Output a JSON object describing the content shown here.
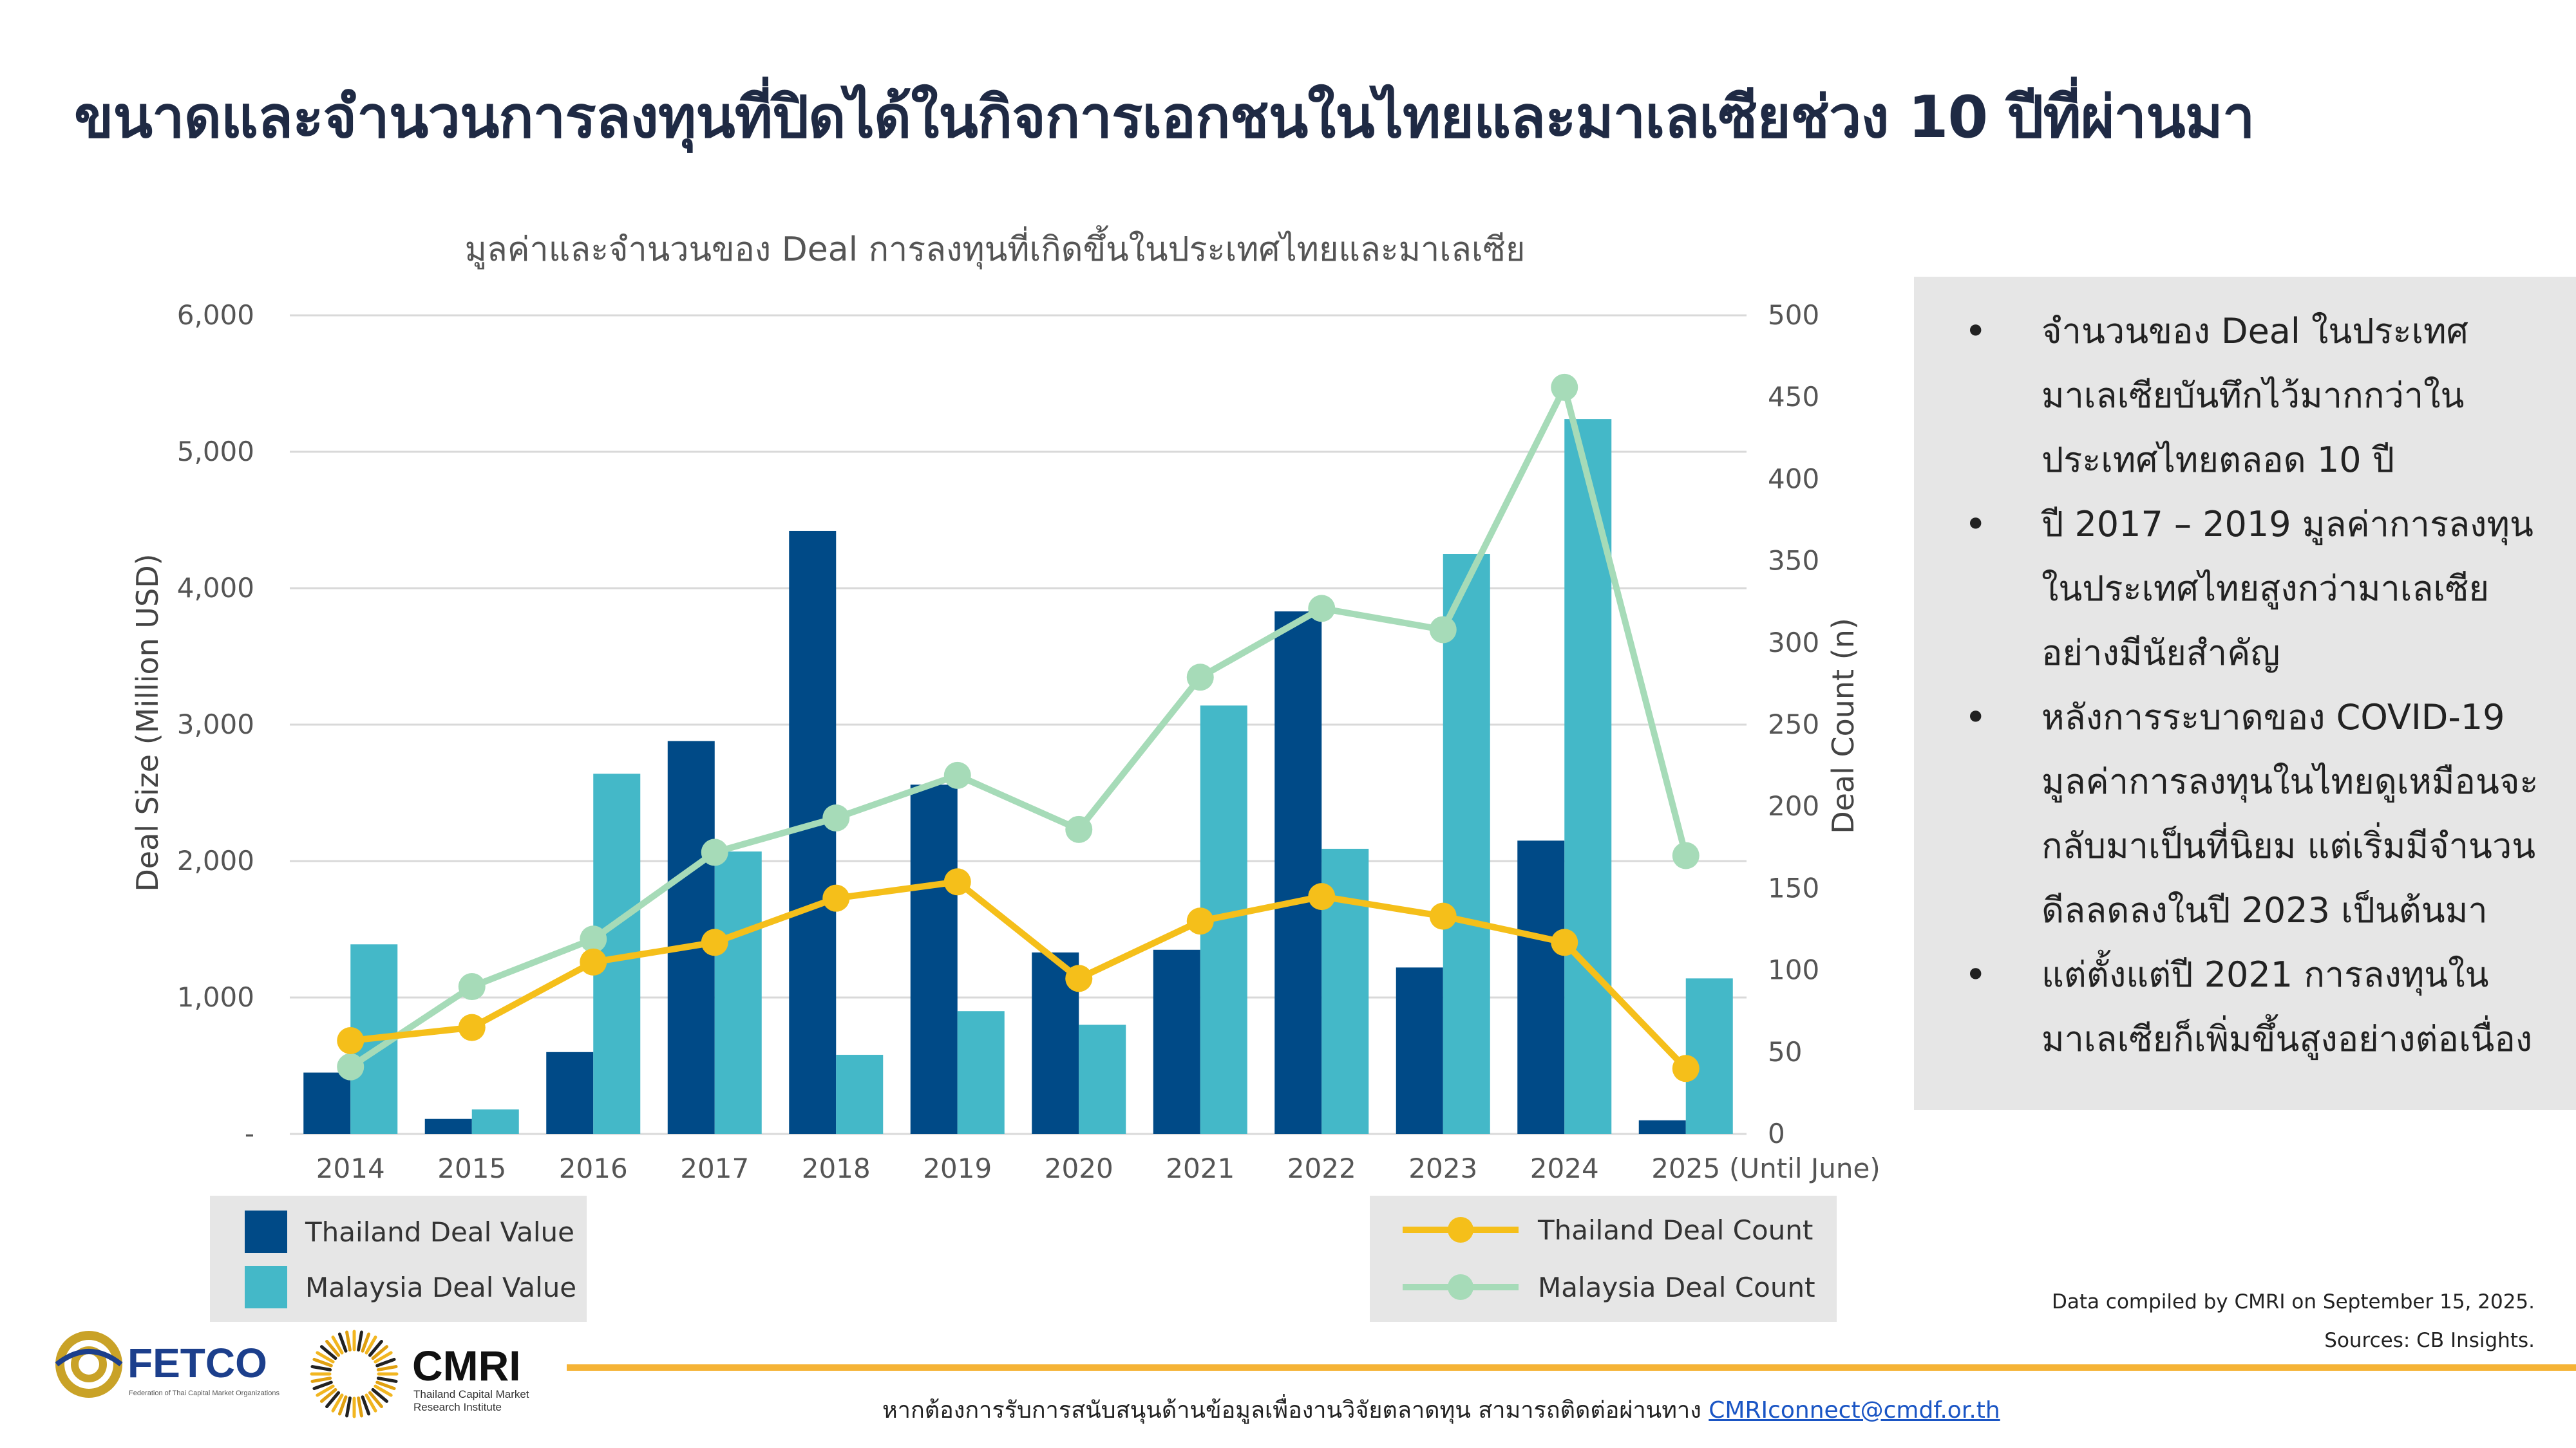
{
  "page": {
    "title": "ขนาดและจำนวนการลงทุนที่ปิดได้ในกิจการเอกชนในไทยและมาเลเซียช่วง 10 ปีที่ผ่านมา"
  },
  "chart_data": {
    "type": "bar",
    "title": "มูลค่าและจำนวนของ Deal การลงทุนที่เกิดขึ้นในประเทศไทยและมาเลเซีย",
    "categories": [
      "2014",
      "2015",
      "2016",
      "2017",
      "2018",
      "2019",
      "2020",
      "2021",
      "2022",
      "2023",
      "2024",
      "2025"
    ],
    "category_note": "(Until June)",
    "ylabel": "Deal Size (Million USD)",
    "y2label": "Deal Count (n)",
    "ylim": [
      0,
      6000
    ],
    "y2lim": [
      0,
      500
    ],
    "y_ticks": [
      "-",
      "1,000",
      "2,000",
      "3,000",
      "4,000",
      "5,000",
      "6,000"
    ],
    "y_tick_values": [
      0,
      1000,
      2000,
      3000,
      4000,
      5000,
      6000
    ],
    "y2_ticks": [
      "0",
      "50",
      "100",
      "150",
      "200",
      "250",
      "300",
      "350",
      "400",
      "450",
      "500"
    ],
    "y2_tick_values": [
      0,
      50,
      100,
      150,
      200,
      250,
      300,
      350,
      400,
      450,
      500
    ],
    "grid": true,
    "bar_series": [
      {
        "name": "Thailand Deal Value",
        "color": "#004a87",
        "values": [
          450,
          110,
          600,
          2880,
          4420,
          2560,
          1330,
          1350,
          3830,
          1220,
          2150,
          100
        ]
      },
      {
        "name": "Malaysia Deal Value",
        "color": "#44b8c8",
        "values": [
          1390,
          180,
          2640,
          2070,
          580,
          900,
          800,
          3140,
          2090,
          4250,
          5240,
          1140
        ]
      }
    ],
    "line_series": [
      {
        "name": "Thailand Deal Count",
        "color": "#f5bf1a",
        "axis": "y2",
        "values": [
          57,
          65,
          105,
          117,
          144,
          154,
          95,
          130,
          145,
          133,
          117,
          40
        ]
      },
      {
        "name": "Malaysia Deal Count",
        "color": "#a6dbb8",
        "axis": "y2",
        "values": [
          41,
          90,
          119,
          172,
          193,
          219,
          186,
          279,
          321,
          308,
          456,
          170
        ]
      }
    ],
    "legend_left": [
      "Thailand Deal Value",
      "Malaysia Deal Value"
    ],
    "legend_right": [
      "Thailand Deal Count",
      "Malaysia Deal Count"
    ]
  },
  "notes": [
    "จำนวนของ Deal ในประเทศมาเลเซียบันทึกไว้มากกว่าในประเทศไทยตลอด 10 ปี",
    "ปี 2017 – 2019 มูลค่าการลงทุนในประเทศไทยสูงกว่ามาเลเซียอย่างมีนัยสำคัญ",
    "หลังการระบาดของ COVID-19 มูลค่าการลงทุนในไทยดูเหมือนจะกลับมาเป็นที่นิยม แต่เริ่มมีจำนวนดีลลดลงในปี 2023 เป็นต้นมา",
    "แต่ตั้งแต่ปี 2021 การลงทุนในมาเลเซียก็เพิ่มขึ้นสูงอย่างต่อเนื่อง"
  ],
  "bullet_glyph": "•",
  "footnotes": {
    "compiled": "Data compiled by CMRI on September 15, 2025.",
    "sources": "Sources: CB Insights."
  },
  "footer": {
    "contact_text": "หากต้องการรับการสนับสนุนด้านข้อมูลเพื่องานวิจัยตลาดทุน สามารถติดต่อผ่านทาง",
    "contact_email": "CMRIconnect@cmdf.or.th",
    "fetco_name": "FETCO",
    "fetco_sub": "Federation of Thai Capital Market Organizations",
    "cmri_name": "CMRI",
    "cmri_sub1": "Thailand Capital Market",
    "cmri_sub2": "Research Institute"
  },
  "colors": {
    "accent_rule": "#f5b336",
    "title": "#1f2a44",
    "panel": "#e6e6e6",
    "link": "#1a55c4"
  }
}
